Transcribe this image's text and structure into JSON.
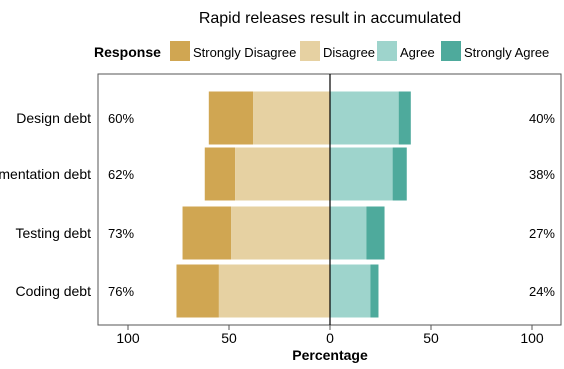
{
  "chart_data": {
    "type": "bar",
    "orientation": "horizontal",
    "stacked": "diverging",
    "title": "Rapid releases result in accumulated",
    "xlabel": "Percentage",
    "ylabel": "",
    "xlim": [
      -100,
      100
    ],
    "xticks": [
      -100,
      -50,
      0,
      50,
      100
    ],
    "xtick_labels": [
      "100",
      "50",
      "0",
      "50",
      "100"
    ],
    "legend": {
      "title": "Response",
      "position": "top"
    },
    "categories": [
      "Design debt",
      "mentation debt",
      "Testing debt",
      "Coding debt"
    ],
    "series": [
      {
        "name": "Strongly Disagree",
        "color": "#d0a652",
        "values": [
          22,
          15,
          24,
          21
        ]
      },
      {
        "name": "Disagree",
        "color": "#e6d1a2",
        "values": [
          38,
          47,
          49,
          55
        ]
      },
      {
        "name": "Agree",
        "color": "#9ed4cc",
        "values": [
          34,
          31,
          18,
          20
        ]
      },
      {
        "name": "Strongly Agree",
        "color": "#4eaa9c",
        "values": [
          6,
          7,
          9,
          4
        ]
      }
    ],
    "left_labels": [
      "60%",
      "62%",
      "73%",
      "76%"
    ],
    "right_labels": [
      "40%",
      "38%",
      "27%",
      "24%"
    ],
    "grid": false
  }
}
